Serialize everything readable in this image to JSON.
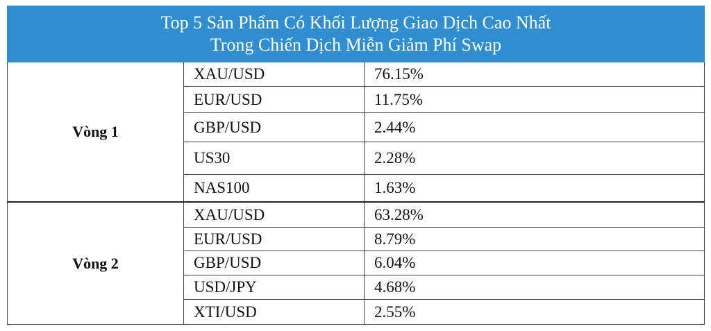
{
  "header": {
    "title_lines": [
      "Top 5 Sản Phẩm Có Khối Lượng Giao Dịch Cao Nhất",
      "Trong Chiến Dịch Miễn Giảm Phí Swap"
    ]
  },
  "table": {
    "groups": [
      {
        "label": "Vòng 1",
        "rows": [
          [
            "XAU/USD",
            "76.15%"
          ],
          [
            "EUR/USD",
            "11.75%"
          ],
          [
            "GBP/USD",
            "2.44%"
          ],
          [
            "US30",
            "2.28%"
          ],
          [
            "NAS100",
            "1.63%"
          ]
        ]
      },
      {
        "label": "Vòng 2",
        "rows": [
          [
            "XAU/USD",
            "63.28%"
          ],
          [
            "EUR/USD",
            "8.79%"
          ],
          [
            "GBP/USD",
            "6.04%"
          ],
          [
            "USD/JPY",
            "4.68%"
          ],
          [
            "XTI/USD",
            "2.55%"
          ]
        ]
      }
    ]
  }
}
